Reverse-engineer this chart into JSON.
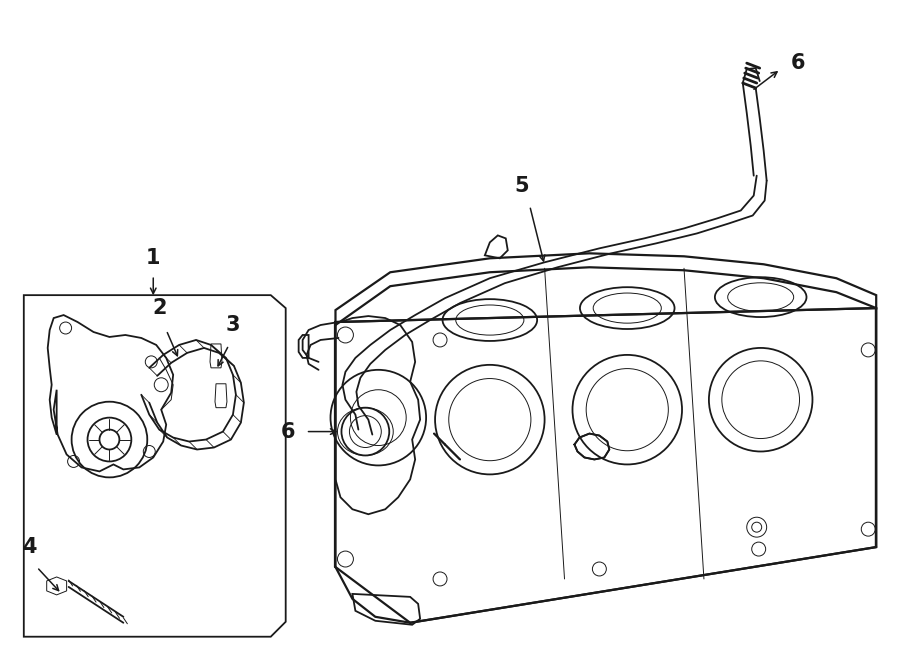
{
  "background_color": "#ffffff",
  "line_color": "#1a1a1a",
  "figsize": [
    9.0,
    6.61
  ],
  "dpi": 100,
  "lw_main": 1.3,
  "lw_thin": 0.7,
  "lw_thick": 1.6
}
